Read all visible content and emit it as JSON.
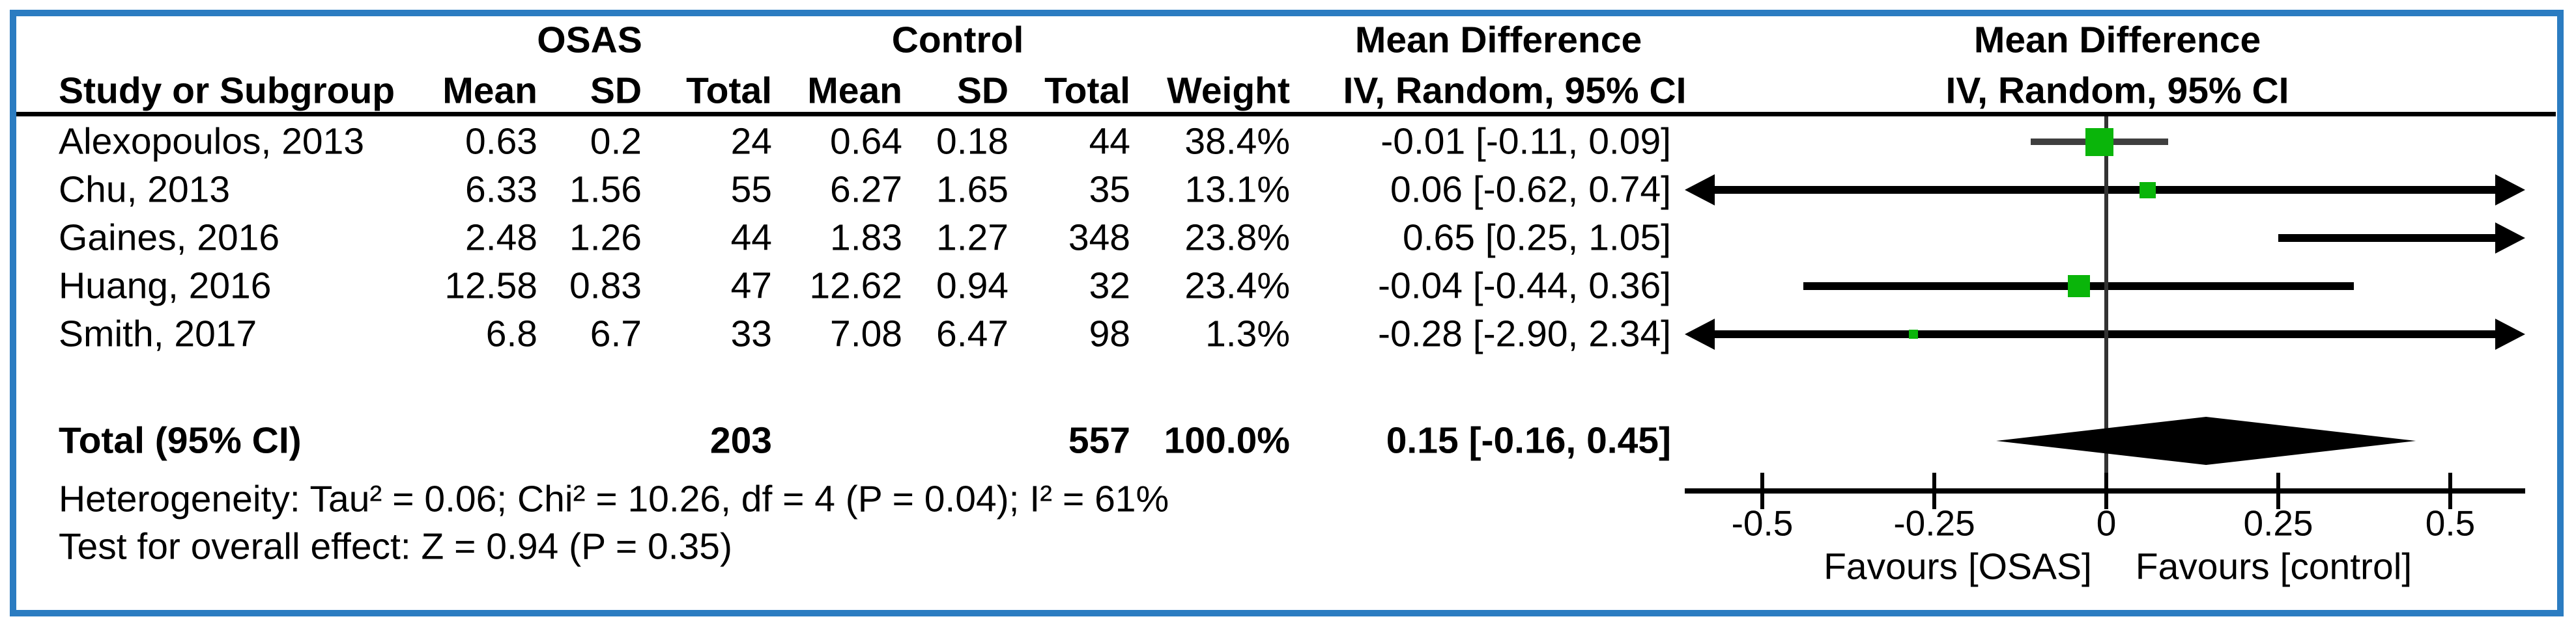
{
  "frame": {
    "border_color": "#2b7cc1"
  },
  "header": {
    "study_col": "Study or Subgroup",
    "group1": "OSAS",
    "group2": "Control",
    "mean_label": "Mean",
    "sd_label": "SD",
    "total_label": "Total",
    "weight_label": "Weight",
    "effect_label": "Mean Difference",
    "effect_sub": "IV, Random, 95% CI",
    "plot_title": "Mean Difference",
    "plot_subtitle": "IV, Random, 95% CI"
  },
  "totals": {
    "label": "Total (95% CI)",
    "osas_total": "203",
    "control_total": "557",
    "weight": "100.0%",
    "ci_text": "0.15 [-0.16, 0.45]"
  },
  "footnotes": {
    "heterogeneity": "Heterogeneity: Tau² = 0.06; Chi² = 10.26, df = 4 (P = 0.04); I² = 61%",
    "overall_effect": "Test for overall effect: Z = 0.94 (P = 0.35)"
  },
  "axis": {
    "tick_values": [
      -0.5,
      -0.25,
      0,
      0.25,
      0.5
    ],
    "tick_labels": [
      "-0.5",
      "-0.25",
      "0",
      "0.25",
      "0.5"
    ],
    "favours_left": "Favours [OSAS]",
    "favours_right": "Favours [control]"
  },
  "chart_data": {
    "type": "scatter",
    "subtype": "forest-plot",
    "title": "Mean Difference  IV, Random, 95% CI",
    "xlabel": "Mean Difference",
    "x_ticks": [
      -0.5,
      -0.25,
      0,
      0.25,
      0.5
    ],
    "x_visible_range": [
      -0.61,
      0.61
    ],
    "legend_position": "none",
    "grid": false,
    "marker_color": "#0ab50a",
    "favours_left": "Favours [OSAS]",
    "favours_right": "Favours [control]",
    "studies": [
      {
        "name": "Alexopoulos, 2013",
        "osas_mean": "0.63",
        "osas_sd": "0.2",
        "osas_total": "24",
        "control_mean": "0.64",
        "control_sd": "0.18",
        "control_total": "44",
        "weight": "38.4%",
        "weight_value": 38.4,
        "md": -0.01,
        "ci_low": -0.11,
        "ci_high": 0.09,
        "ci_text": "-0.01 [-0.11, 0.09]"
      },
      {
        "name": "Chu, 2013",
        "osas_mean": "6.33",
        "osas_sd": "1.56",
        "osas_total": "55",
        "control_mean": "6.27",
        "control_sd": "1.65",
        "control_total": "35",
        "weight": "13.1%",
        "weight_value": 13.1,
        "md": 0.06,
        "ci_low": -0.62,
        "ci_high": 0.74,
        "ci_text": "0.06 [-0.62, 0.74]"
      },
      {
        "name": "Gaines, 2016",
        "osas_mean": "2.48",
        "osas_sd": "1.26",
        "osas_total": "44",
        "control_mean": "1.83",
        "control_sd": "1.27",
        "control_total": "348",
        "weight": "23.8%",
        "weight_value": 23.8,
        "md": 0.65,
        "ci_low": 0.25,
        "ci_high": 1.05,
        "ci_text": "0.65 [0.25, 1.05]"
      },
      {
        "name": "Huang, 2016",
        "osas_mean": "12.58",
        "osas_sd": "0.83",
        "osas_total": "47",
        "control_mean": "12.62",
        "control_sd": "0.94",
        "control_total": "32",
        "weight": "23.4%",
        "weight_value": 23.4,
        "md": -0.04,
        "ci_low": -0.44,
        "ci_high": 0.36,
        "ci_text": "-0.04 [-0.44, 0.36]"
      },
      {
        "name": "Smith, 2017",
        "osas_mean": "6.8",
        "osas_sd": "6.7",
        "osas_total": "33",
        "control_mean": "7.08",
        "control_sd": "6.47",
        "control_total": "98",
        "weight": "1.3%",
        "weight_value": 1.3,
        "md": -0.28,
        "ci_low": -2.9,
        "ci_high": 2.34,
        "ci_text": "-0.28 [-2.90, 2.34]"
      }
    ],
    "total": {
      "label": "Total (95% CI)",
      "osas_total": 203,
      "control_total": 557,
      "weight": "100.0%",
      "md": 0.15,
      "ci_low": -0.16,
      "ci_high": 0.45,
      "ci_text": "0.15 [-0.16, 0.45]"
    }
  }
}
